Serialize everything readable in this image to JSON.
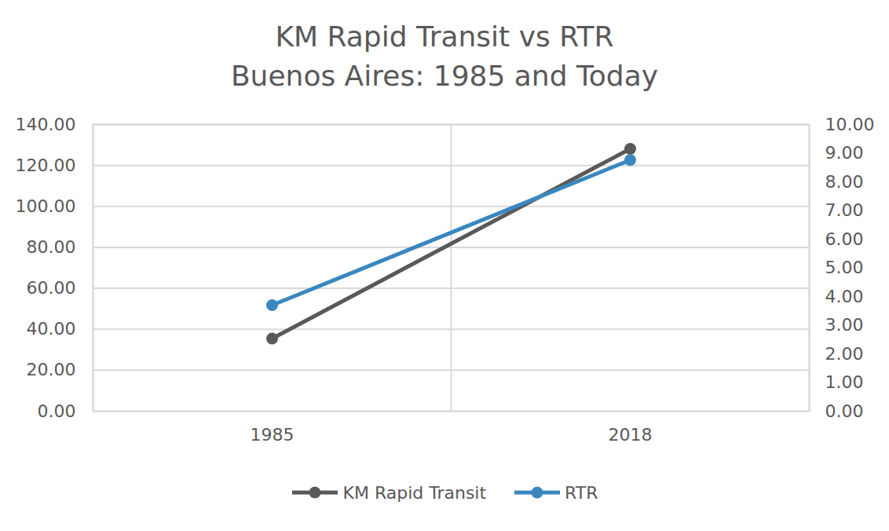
{
  "chart_data": {
    "type": "line",
    "title": "KM Rapid Transit vs RTR",
    "subtitle": "Buenos Aires: 1985 and Today",
    "categories": [
      "1985",
      "2018"
    ],
    "series": [
      {
        "name": "KM Rapid Transit",
        "color": "#595959",
        "values": [
          35.5,
          128.1
        ],
        "marker": "circle",
        "line_style": "solid"
      },
      {
        "name": "RTR",
        "color": "#3a87c0",
        "values": [
          3.7,
          8.76
        ],
        "axis": "y2",
        "marker": "circle",
        "line_style": "solid"
      }
    ],
    "ylim": [
      0,
      140
    ],
    "yticks": [
      {
        "value": 0,
        "label": "0.00"
      },
      {
        "value": 20,
        "label": "20.00"
      },
      {
        "value": 40,
        "label": "40.00"
      },
      {
        "value": 60,
        "label": "60.00"
      },
      {
        "value": 80,
        "label": "80.00"
      },
      {
        "value": 100,
        "label": "100.00"
      },
      {
        "value": 120,
        "label": "120.00"
      },
      {
        "value": 140,
        "label": "140.00"
      }
    ],
    "y2lim": [
      0,
      10
    ],
    "y2ticks": [
      {
        "value": 0,
        "label": "0.00"
      },
      {
        "value": 1,
        "label": "1.00"
      },
      {
        "value": 2,
        "label": "2.00"
      },
      {
        "value": 3,
        "label": "3.00"
      },
      {
        "value": 4,
        "label": "4.00"
      },
      {
        "value": 5,
        "label": "5.00"
      },
      {
        "value": 6,
        "label": "6.00"
      },
      {
        "value": 7,
        "label": "7.00"
      },
      {
        "value": 8,
        "label": "8.00"
      },
      {
        "value": 9,
        "label": "9.00"
      },
      {
        "value": 10,
        "label": "10.00"
      }
    ],
    "grid": true,
    "legend": "bottom"
  }
}
